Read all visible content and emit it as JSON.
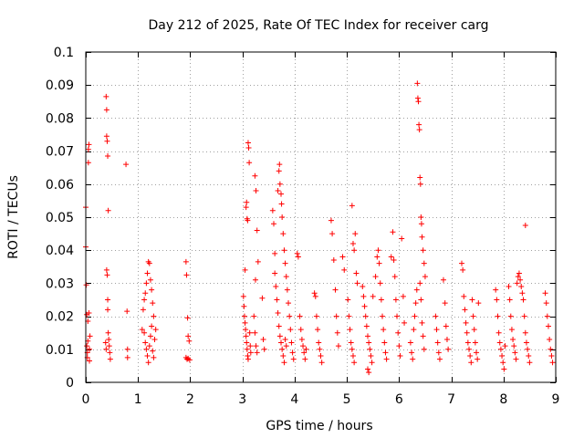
{
  "chart_data": {
    "type": "scatter",
    "title": "Day 212 of 2025, Rate Of TEC Index for receiver carg",
    "xlabel": "GPS time / hours",
    "ylabel": "ROTI / TECUs",
    "xlim": [
      0,
      9
    ],
    "ylim": [
      0,
      0.1
    ],
    "xticks": [
      0,
      1,
      2,
      3,
      4,
      5,
      6,
      7,
      8,
      9
    ],
    "xtick_labels": [
      "0",
      "1",
      "2",
      "3",
      "4",
      "5",
      "6",
      "7",
      "8",
      "9"
    ],
    "yticks": [
      0,
      0.01,
      0.02,
      0.03,
      0.04,
      0.05,
      0.06,
      0.07,
      0.08,
      0.09,
      0.1
    ],
    "ytick_labels": [
      "0",
      "0.01",
      "0.02",
      "0.03",
      "0.04",
      "0.05",
      "0.06",
      "0.07",
      "0.08",
      "0.09",
      "0.1"
    ],
    "grid": true,
    "marker": "+",
    "color": "#ff0000",
    "series": [
      {
        "name": "ROTI",
        "points": [
          [
            0.0,
            0.053
          ],
          [
            0.0,
            0.041
          ],
          [
            0.01,
            0.0295
          ],
          [
            0.02,
            0.0205
          ],
          [
            0.02,
            0.011
          ],
          [
            0.03,
            0.009
          ],
          [
            0.03,
            0.0075
          ],
          [
            0.04,
            0.0125
          ],
          [
            0.04,
            0.0185
          ],
          [
            0.05,
            0.0665
          ],
          [
            0.05,
            0.0705
          ],
          [
            0.06,
            0.072
          ],
          [
            0.06,
            0.021
          ],
          [
            0.07,
            0.01
          ],
          [
            0.07,
            0.0065
          ],
          [
            0.08,
            0.014
          ],
          [
            0.39,
            0.0865
          ],
          [
            0.4,
            0.0825
          ],
          [
            0.4,
            0.0745
          ],
          [
            0.41,
            0.073
          ],
          [
            0.42,
            0.0685
          ],
          [
            0.43,
            0.052
          ],
          [
            0.4,
            0.034
          ],
          [
            0.41,
            0.0325
          ],
          [
            0.42,
            0.025
          ],
          [
            0.42,
            0.022
          ],
          [
            0.43,
            0.015
          ],
          [
            0.44,
            0.013
          ],
          [
            0.45,
            0.011
          ],
          [
            0.46,
            0.009
          ],
          [
            0.47,
            0.007
          ],
          [
            0.38,
            0.012
          ],
          [
            0.39,
            0.01
          ],
          [
            0.77,
            0.066
          ],
          [
            0.79,
            0.0215
          ],
          [
            0.8,
            0.01
          ],
          [
            0.8,
            0.0075
          ],
          [
            1.08,
            0.016
          ],
          [
            1.1,
            0.022
          ],
          [
            1.12,
            0.025
          ],
          [
            1.14,
            0.027
          ],
          [
            1.16,
            0.03
          ],
          [
            1.18,
            0.033
          ],
          [
            1.2,
            0.0365
          ],
          [
            1.22,
            0.036
          ],
          [
            1.24,
            0.031
          ],
          [
            1.26,
            0.028
          ],
          [
            1.28,
            0.024
          ],
          [
            1.3,
            0.02
          ],
          [
            1.12,
            0.015
          ],
          [
            1.14,
            0.012
          ],
          [
            1.16,
            0.01
          ],
          [
            1.18,
            0.008
          ],
          [
            1.2,
            0.006
          ],
          [
            1.22,
            0.011
          ],
          [
            1.24,
            0.014
          ],
          [
            1.26,
            0.017
          ],
          [
            1.28,
            0.0095
          ],
          [
            1.3,
            0.0075
          ],
          [
            1.32,
            0.013
          ],
          [
            1.34,
            0.016
          ],
          [
            1.92,
            0.0365
          ],
          [
            1.93,
            0.0325
          ],
          [
            1.95,
            0.0195
          ],
          [
            1.96,
            0.014
          ],
          [
            1.98,
            0.0125
          ],
          [
            1.92,
            0.0075
          ],
          [
            1.94,
            0.007
          ],
          [
            1.96,
            0.0072
          ],
          [
            1.99,
            0.0068
          ],
          [
            3.02,
            0.026
          ],
          [
            3.03,
            0.023
          ],
          [
            3.04,
            0.02
          ],
          [
            3.05,
            0.018
          ],
          [
            3.06,
            0.016
          ],
          [
            3.07,
            0.014
          ],
          [
            3.08,
            0.012
          ],
          [
            3.09,
            0.01
          ],
          [
            3.1,
            0.008
          ],
          [
            3.11,
            0.007
          ],
          [
            3.05,
            0.034
          ],
          [
            3.07,
            0.053
          ],
          [
            3.08,
            0.0545
          ],
          [
            3.09,
            0.0495
          ],
          [
            3.1,
            0.049
          ],
          [
            3.11,
            0.0725
          ],
          [
            3.12,
            0.071
          ],
          [
            3.13,
            0.0665
          ],
          [
            3.14,
            0.015
          ],
          [
            3.15,
            0.011
          ],
          [
            3.16,
            0.009
          ],
          [
            3.24,
            0.0625
          ],
          [
            3.26,
            0.058
          ],
          [
            3.28,
            0.046
          ],
          [
            3.3,
            0.0365
          ],
          [
            3.25,
            0.031
          ],
          [
            3.22,
            0.02
          ],
          [
            3.24,
            0.015
          ],
          [
            3.26,
            0.011
          ],
          [
            3.28,
            0.009
          ],
          [
            3.38,
            0.0255
          ],
          [
            3.4,
            0.013
          ],
          [
            3.42,
            0.01
          ],
          [
            3.58,
            0.052
          ],
          [
            3.6,
            0.048
          ],
          [
            3.62,
            0.039
          ],
          [
            3.62,
            0.033
          ],
          [
            3.64,
            0.029
          ],
          [
            3.66,
            0.025
          ],
          [
            3.68,
            0.021
          ],
          [
            3.7,
            0.017
          ],
          [
            3.72,
            0.014
          ],
          [
            3.74,
            0.012
          ],
          [
            3.76,
            0.01
          ],
          [
            3.78,
            0.008
          ],
          [
            3.8,
            0.006
          ],
          [
            3.68,
            0.058
          ],
          [
            3.7,
            0.064
          ],
          [
            3.71,
            0.066
          ],
          [
            3.72,
            0.06
          ],
          [
            3.74,
            0.057
          ],
          [
            3.75,
            0.054
          ],
          [
            3.76,
            0.05
          ],
          [
            3.78,
            0.045
          ],
          [
            3.8,
            0.04
          ],
          [
            3.82,
            0.036
          ],
          [
            3.84,
            0.032
          ],
          [
            3.86,
            0.028
          ],
          [
            3.88,
            0.024
          ],
          [
            3.9,
            0.02
          ],
          [
            3.92,
            0.016
          ],
          [
            3.94,
            0.012
          ],
          [
            3.96,
            0.009
          ],
          [
            3.98,
            0.007
          ],
          [
            3.82,
            0.013
          ],
          [
            3.84,
            0.011
          ],
          [
            4.05,
            0.039
          ],
          [
            4.07,
            0.038
          ],
          [
            4.1,
            0.02
          ],
          [
            4.12,
            0.016
          ],
          [
            4.14,
            0.013
          ],
          [
            4.16,
            0.011
          ],
          [
            4.18,
            0.009
          ],
          [
            4.2,
            0.007
          ],
          [
            4.22,
            0.01
          ],
          [
            4.38,
            0.027
          ],
          [
            4.4,
            0.026
          ],
          [
            4.42,
            0.02
          ],
          [
            4.44,
            0.016
          ],
          [
            4.46,
            0.012
          ],
          [
            4.48,
            0.01
          ],
          [
            4.5,
            0.008
          ],
          [
            4.52,
            0.006
          ],
          [
            4.7,
            0.049
          ],
          [
            4.72,
            0.045
          ],
          [
            4.75,
            0.037
          ],
          [
            4.78,
            0.028
          ],
          [
            4.8,
            0.02
          ],
          [
            4.82,
            0.015
          ],
          [
            4.84,
            0.011
          ],
          [
            4.92,
            0.038
          ],
          [
            4.95,
            0.034
          ],
          [
            5.02,
            0.025
          ],
          [
            5.04,
            0.02
          ],
          [
            5.06,
            0.016
          ],
          [
            5.08,
            0.012
          ],
          [
            5.1,
            0.01
          ],
          [
            5.12,
            0.008
          ],
          [
            5.14,
            0.006
          ],
          [
            5.1,
            0.0535
          ],
          [
            5.12,
            0.042
          ],
          [
            5.14,
            0.04
          ],
          [
            5.16,
            0.045
          ],
          [
            5.18,
            0.033
          ],
          [
            5.2,
            0.03
          ],
          [
            5.3,
            0.029
          ],
          [
            5.32,
            0.026
          ],
          [
            5.34,
            0.023
          ],
          [
            5.36,
            0.02
          ],
          [
            5.38,
            0.017
          ],
          [
            5.4,
            0.014
          ],
          [
            5.42,
            0.012
          ],
          [
            5.44,
            0.01
          ],
          [
            5.46,
            0.008
          ],
          [
            5.48,
            0.006
          ],
          [
            5.4,
            0.004
          ],
          [
            5.42,
            0.003
          ],
          [
            5.5,
            0.026
          ],
          [
            5.55,
            0.032
          ],
          [
            5.58,
            0.038
          ],
          [
            5.6,
            0.04
          ],
          [
            5.62,
            0.036
          ],
          [
            5.64,
            0.03
          ],
          [
            5.66,
            0.025
          ],
          [
            5.68,
            0.02
          ],
          [
            5.7,
            0.016
          ],
          [
            5.72,
            0.012
          ],
          [
            5.74,
            0.009
          ],
          [
            5.76,
            0.007
          ],
          [
            5.85,
            0.038
          ],
          [
            5.88,
            0.0455
          ],
          [
            5.9,
            0.037
          ],
          [
            5.92,
            0.032
          ],
          [
            5.94,
            0.025
          ],
          [
            5.96,
            0.02
          ],
          [
            5.98,
            0.015
          ],
          [
            6.0,
            0.011
          ],
          [
            6.02,
            0.008
          ],
          [
            6.05,
            0.0435
          ],
          [
            6.08,
            0.026
          ],
          [
            6.1,
            0.018
          ],
          [
            6.22,
            0.012
          ],
          [
            6.24,
            0.009
          ],
          [
            6.26,
            0.007
          ],
          [
            6.28,
            0.016
          ],
          [
            6.3,
            0.02
          ],
          [
            6.32,
            0.024
          ],
          [
            6.34,
            0.028
          ],
          [
            6.35,
            0.0905
          ],
          [
            6.36,
            0.086
          ],
          [
            6.37,
            0.085
          ],
          [
            6.38,
            0.078
          ],
          [
            6.39,
            0.0765
          ],
          [
            6.4,
            0.062
          ],
          [
            6.41,
            0.06
          ],
          [
            6.42,
            0.05
          ],
          [
            6.43,
            0.048
          ],
          [
            6.44,
            0.044
          ],
          [
            6.46,
            0.04
          ],
          [
            6.48,
            0.036
          ],
          [
            6.5,
            0.032
          ],
          [
            6.4,
            0.03
          ],
          [
            6.42,
            0.025
          ],
          [
            6.44,
            0.018
          ],
          [
            6.46,
            0.014
          ],
          [
            6.48,
            0.01
          ],
          [
            6.7,
            0.02
          ],
          [
            6.72,
            0.016
          ],
          [
            6.74,
            0.012
          ],
          [
            6.76,
            0.009
          ],
          [
            6.78,
            0.007
          ],
          [
            6.85,
            0.031
          ],
          [
            6.88,
            0.024
          ],
          [
            6.9,
            0.017
          ],
          [
            6.92,
            0.013
          ],
          [
            6.94,
            0.01
          ],
          [
            7.2,
            0.036
          ],
          [
            7.22,
            0.034
          ],
          [
            7.24,
            0.026
          ],
          [
            7.26,
            0.022
          ],
          [
            7.28,
            0.018
          ],
          [
            7.3,
            0.015
          ],
          [
            7.32,
            0.012
          ],
          [
            7.34,
            0.01
          ],
          [
            7.36,
            0.008
          ],
          [
            7.38,
            0.006
          ],
          [
            7.4,
            0.025
          ],
          [
            7.42,
            0.02
          ],
          [
            7.44,
            0.016
          ],
          [
            7.46,
            0.012
          ],
          [
            7.48,
            0.009
          ],
          [
            7.5,
            0.007
          ],
          [
            7.52,
            0.024
          ],
          [
            7.85,
            0.028
          ],
          [
            7.87,
            0.025
          ],
          [
            7.89,
            0.02
          ],
          [
            7.91,
            0.015
          ],
          [
            7.93,
            0.012
          ],
          [
            7.95,
            0.01
          ],
          [
            7.97,
            0.008
          ],
          [
            7.99,
            0.006
          ],
          [
            8.01,
            0.004
          ],
          [
            8.03,
            0.011
          ],
          [
            8.1,
            0.029
          ],
          [
            8.12,
            0.025
          ],
          [
            8.14,
            0.02
          ],
          [
            8.16,
            0.016
          ],
          [
            8.18,
            0.013
          ],
          [
            8.2,
            0.011
          ],
          [
            8.22,
            0.009
          ],
          [
            8.24,
            0.007
          ],
          [
            8.26,
            0.03
          ],
          [
            8.28,
            0.032
          ],
          [
            8.3,
            0.033
          ],
          [
            8.32,
            0.031
          ],
          [
            8.34,
            0.029
          ],
          [
            8.36,
            0.027
          ],
          [
            8.38,
            0.025
          ],
          [
            8.4,
            0.02
          ],
          [
            8.42,
            0.015
          ],
          [
            8.44,
            0.012
          ],
          [
            8.46,
            0.01
          ],
          [
            8.48,
            0.008
          ],
          [
            8.5,
            0.006
          ],
          [
            8.42,
            0.0475
          ],
          [
            8.8,
            0.027
          ],
          [
            8.82,
            0.024
          ],
          [
            8.84,
            0.02
          ],
          [
            8.86,
            0.017
          ],
          [
            8.88,
            0.013
          ],
          [
            8.9,
            0.01
          ],
          [
            8.92,
            0.008
          ],
          [
            8.94,
            0.006
          ]
        ]
      }
    ]
  }
}
